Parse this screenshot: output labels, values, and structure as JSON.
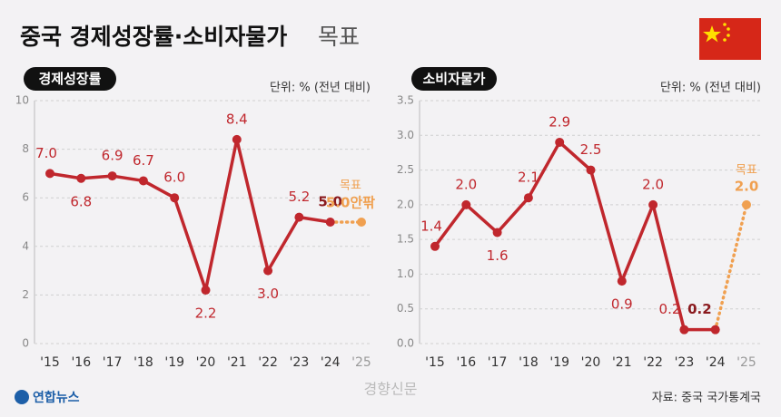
{
  "title": "중국 경제성장률·소비자물가",
  "title_suffix": "목표",
  "credit": "연합뉴스",
  "watermark": "경향신문",
  "source": "자료: 중국 국가통계국",
  "chart_data": [
    {
      "type": "line",
      "panel_label": "경제성장률",
      "unit": "단위: % (전년 대비)",
      "categories": [
        "'15",
        "'16",
        "'17",
        "'18",
        "'19",
        "'20",
        "'21",
        "'22",
        "'23",
        "'24",
        "'25"
      ],
      "series": [
        {
          "color": "#c0272d",
          "values": [
            7.0,
            6.8,
            6.9,
            6.7,
            6.0,
            2.2,
            8.4,
            3.0,
            5.2,
            5.0,
            null
          ],
          "value_labels": [
            "7.0",
            "6.8",
            "6.9",
            "6.7",
            "6.0",
            "2.2",
            "8.4",
            "3.0",
            "5.2",
            "5.0",
            null
          ]
        },
        {
          "name": "목표",
          "color": "#f0a050",
          "values": [
            null,
            null,
            null,
            null,
            null,
            null,
            null,
            null,
            null,
            null,
            5.0
          ],
          "value_labels": [
            null,
            null,
            null,
            null,
            null,
            null,
            null,
            null,
            null,
            null,
            "5.0안팎"
          ]
        }
      ],
      "ylim": [
        0,
        10
      ],
      "yticks": [
        0,
        2,
        4,
        6,
        8,
        10
      ],
      "grid": true
    },
    {
      "type": "line",
      "panel_label": "소비자물가",
      "unit": "단위: % (전년 대비)",
      "categories": [
        "'15",
        "'16",
        "'17",
        "'18",
        "'19",
        "'20",
        "'21",
        "'22",
        "'23",
        "'24",
        "'25"
      ],
      "series": [
        {
          "color": "#c0272d",
          "values": [
            1.4,
            2.0,
            1.6,
            2.1,
            2.9,
            2.5,
            0.9,
            2.0,
            0.2,
            0.2,
            null
          ],
          "value_labels": [
            "1.4",
            "2.0",
            "1.6",
            "2.1",
            "2.9",
            "2.5",
            "0.9",
            "2.0",
            "0.2",
            "0.2",
            null
          ]
        },
        {
          "name": "목표",
          "color": "#f0a050",
          "values": [
            null,
            null,
            null,
            null,
            null,
            null,
            null,
            null,
            null,
            null,
            2.0
          ],
          "value_labels": [
            null,
            null,
            null,
            null,
            null,
            null,
            null,
            null,
            null,
            null,
            "2.0"
          ]
        }
      ],
      "ylim": [
        0,
        3.5
      ],
      "yticks": [
        {
          "value": 0,
          "label": "0.0"
        },
        {
          "value": 0.5,
          "label": "0.5"
        },
        {
          "value": 1,
          "label": "1.0"
        },
        {
          "value": 1.5,
          "label": "1.5"
        },
        {
          "value": 2,
          "label": "2.0"
        },
        {
          "value": 2.5,
          "label": "2.5"
        },
        {
          "value": 3,
          "label": "3.0"
        },
        {
          "value": 3.5,
          "label": "3.5"
        }
      ],
      "grid": true
    }
  ]
}
